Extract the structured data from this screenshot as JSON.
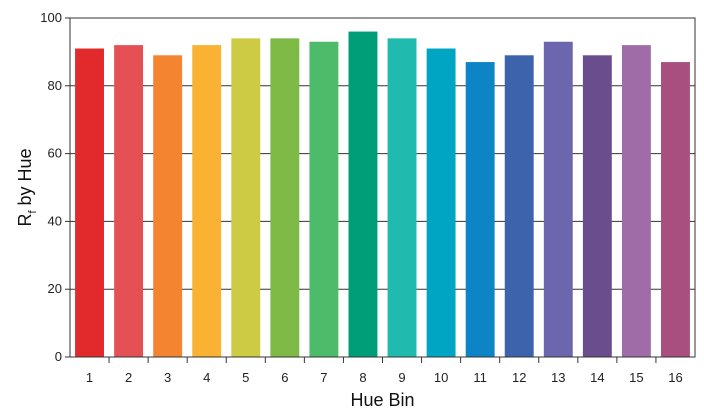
{
  "chart_data": {
    "type": "bar",
    "title": "",
    "xlabel": "Hue Bin",
    "ylabel": {
      "main": "R",
      "sub": "f",
      "rest": " by Hue"
    },
    "categories": [
      "1",
      "2",
      "3",
      "4",
      "5",
      "6",
      "7",
      "8",
      "9",
      "10",
      "11",
      "12",
      "13",
      "14",
      "15",
      "16"
    ],
    "values": [
      91,
      92,
      89,
      92,
      94,
      94,
      93,
      96,
      94,
      91,
      87,
      89,
      93,
      89,
      92,
      87
    ],
    "ylim": [
      0,
      100
    ],
    "yticks": [
      "0",
      "20",
      "40",
      "60",
      "80",
      "100"
    ],
    "grid": true,
    "colors": [
      "#e22a2c",
      "#e55054",
      "#f58431",
      "#f9b232",
      "#cdcb44",
      "#7fba47",
      "#4ebb6a",
      "#009e78",
      "#20bbae",
      "#00a5c3",
      "#0d84c6",
      "#3d63ac",
      "#6b66ad",
      "#6a4d8c",
      "#a06ca8",
      "#a84f7f"
    ]
  }
}
